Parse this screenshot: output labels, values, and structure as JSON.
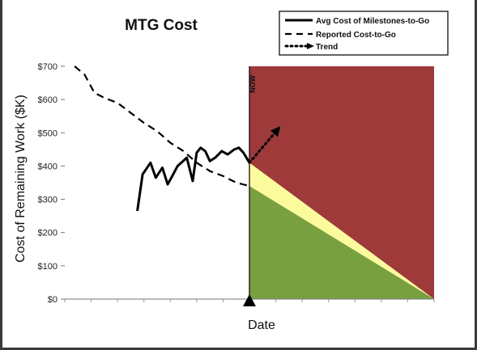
{
  "chart_data": {
    "type": "line",
    "title": "MTG Cost",
    "xlabel": "Date",
    "ylabel": "Cost of Remaining Work ($K)",
    "ylim": [
      0,
      700
    ],
    "yticks": [
      0,
      100,
      200,
      300,
      400,
      500,
      600,
      700
    ],
    "ytick_labels": [
      "$0",
      "$100",
      "$200",
      "$300",
      "$400",
      "$500",
      "$600",
      "$700"
    ],
    "xlim": [
      0,
      56
    ],
    "now_x": 28,
    "now_label": "NOW",
    "legend_position": "top-right",
    "series": [
      {
        "name": "Avg Cost of Milestones-to-Go",
        "style": "solid",
        "x": [
          11,
          11.8,
          13,
          13.8,
          14.8,
          15.6,
          16.3,
          17.1,
          18.5,
          19.4,
          20,
          20.6,
          21.3,
          22,
          22.8,
          23.8,
          24.7,
          25.7,
          26.4,
          27.1,
          28
        ],
        "y": [
          265,
          375,
          410,
          365,
          395,
          345,
          370,
          400,
          425,
          355,
          440,
          455,
          445,
          415,
          425,
          445,
          435,
          450,
          455,
          440,
          410
        ]
      },
      {
        "name": "Reported Cost-to-Go",
        "style": "dashed",
        "x": [
          1.5,
          3,
          4.5,
          6,
          8,
          10,
          12,
          14,
          16,
          18,
          20,
          22,
          24,
          26,
          28
        ],
        "y": [
          700,
          675,
          620,
          605,
          590,
          560,
          530,
          505,
          470,
          445,
          410,
          385,
          370,
          350,
          340
        ]
      },
      {
        "name": "Trend",
        "style": "dotted-arrow",
        "x": [
          28,
          32.5
        ],
        "y": [
          410,
          515
        ]
      }
    ],
    "forecast_regions": [
      {
        "region": "red",
        "color": "#9e3a3a"
      },
      {
        "region": "yellow",
        "color": "#fbfb9e"
      },
      {
        "region": "green",
        "color": "#78a040"
      }
    ],
    "forecast_end_x": 56,
    "forecast_start_upper": 410,
    "forecast_start_lower": 340,
    "legend_entries": [
      "Avg Cost of Milestones-to-Go",
      "Reported Cost-to-Go",
      "Trend"
    ],
    "grid": false
  }
}
